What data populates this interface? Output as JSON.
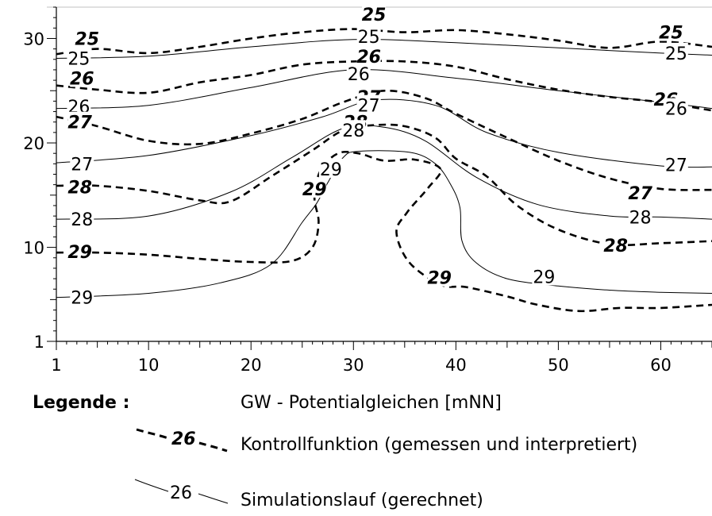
{
  "chart_data": {
    "type": "line",
    "title": "",
    "xlabel": "",
    "ylabel": "",
    "xlim": [
      1,
      65
    ],
    "ylim": [
      1,
      33
    ],
    "x_ticks": [
      1,
      10,
      20,
      30,
      40,
      50,
      60
    ],
    "y_ticks": [
      1,
      10,
      20,
      30
    ],
    "legend_placement": "bottom",
    "legend": {
      "heading": "Legende :",
      "title": "GW - Potentialgleichen [mNN]",
      "entries": [
        {
          "sample_label": "26",
          "text": "Kontrollfunktion (gemessen und interpretiert)"
        },
        {
          "sample_label": "26",
          "text": "Simulationslauf (gerechnet)"
        }
      ]
    },
    "series": [
      {
        "level": "25",
        "style": "dashed",
        "points": [
          [
            1,
            28.5
          ],
          [
            5,
            29
          ],
          [
            10,
            28.6
          ],
          [
            15,
            29.2
          ],
          [
            20,
            30
          ],
          [
            25,
            30.6
          ],
          [
            30,
            30.9
          ],
          [
            35,
            30.6
          ],
          [
            40,
            30.8
          ],
          [
            45,
            30.4
          ],
          [
            50,
            29.8
          ],
          [
            55,
            29.1
          ],
          [
            60,
            29.7
          ],
          [
            65,
            29.2
          ]
        ],
        "labels": [
          {
            "text": "25",
            "x": 4,
            "y": 30
          },
          {
            "text": "25",
            "x": 32,
            "y": 32.3
          },
          {
            "text": "25",
            "x": 61,
            "y": 30.6
          }
        ]
      },
      {
        "level": "25",
        "style": "solid",
        "points": [
          [
            1,
            28.1
          ],
          [
            10,
            28.3
          ],
          [
            20,
            29.2
          ],
          [
            30,
            29.9
          ],
          [
            40,
            29.6
          ],
          [
            50,
            29.1
          ],
          [
            60,
            28.6
          ],
          [
            65,
            28.4
          ]
        ],
        "labels": [
          {
            "text": "25",
            "x": 3.2,
            "y": 28.1
          },
          {
            "text": "25",
            "x": 31.5,
            "y": 30.2
          },
          {
            "text": "25",
            "x": 61.5,
            "y": 28.6
          }
        ]
      },
      {
        "level": "26",
        "style": "dashed",
        "points": [
          [
            1,
            25.5
          ],
          [
            5,
            25.1
          ],
          [
            10,
            24.8
          ],
          [
            15,
            25.8
          ],
          [
            20,
            26.5
          ],
          [
            25,
            27.5
          ],
          [
            30,
            27.8
          ],
          [
            35,
            27.8
          ],
          [
            40,
            27.3
          ],
          [
            45,
            26.1
          ],
          [
            50,
            25.1
          ],
          [
            55,
            24.4
          ],
          [
            60,
            23.9
          ],
          [
            65,
            23.1
          ]
        ],
        "labels": [
          {
            "text": "26",
            "x": 3.5,
            "y": 26.2
          },
          {
            "text": "26",
            "x": 31.5,
            "y": 28.3
          },
          {
            "text": "26",
            "x": 60.5,
            "y": 24.2
          }
        ]
      },
      {
        "level": "26",
        "style": "solid",
        "points": [
          [
            1,
            23.3
          ],
          [
            10,
            23.6
          ],
          [
            20,
            25.3
          ],
          [
            30,
            27
          ],
          [
            40,
            26.2
          ],
          [
            50,
            25
          ],
          [
            60,
            23.9
          ],
          [
            65,
            23.3
          ]
        ],
        "labels": [
          {
            "text": "26",
            "x": 3.2,
            "y": 23.5
          },
          {
            "text": "26",
            "x": 30.5,
            "y": 26.6
          },
          {
            "text": "26",
            "x": 61.5,
            "y": 23.3
          }
        ]
      },
      {
        "level": "27",
        "style": "dashed",
        "points": [
          [
            1,
            22.5
          ],
          [
            5,
            21.6
          ],
          [
            10,
            20.2
          ],
          [
            15,
            19.9
          ],
          [
            20,
            20.9
          ],
          [
            25,
            22.3
          ],
          [
            29,
            23.9
          ],
          [
            33,
            25
          ],
          [
            37,
            24.3
          ],
          [
            40,
            22.8
          ],
          [
            45,
            20.5
          ],
          [
            50,
            18.3
          ],
          [
            55,
            16.6
          ],
          [
            60,
            15.6
          ],
          [
            65,
            15.5
          ]
        ],
        "labels": [
          {
            "text": "27",
            "x": 3.3,
            "y": 22
          },
          {
            "text": "27",
            "x": 31.5,
            "y": 24.4
          },
          {
            "text": "27",
            "x": 58,
            "y": 15.2
          }
        ]
      },
      {
        "level": "27",
        "style": "solid",
        "points": [
          [
            1,
            18.1
          ],
          [
            10,
            18.8
          ],
          [
            20,
            20.7
          ],
          [
            27,
            22.5
          ],
          [
            32,
            24.1
          ],
          [
            38,
            23.6
          ],
          [
            43,
            21
          ],
          [
            50,
            19.1
          ],
          [
            60,
            17.8
          ],
          [
            65,
            17.7
          ]
        ],
        "labels": [
          {
            "text": "27",
            "x": 3.5,
            "y": 18
          },
          {
            "text": "27",
            "x": 31.5,
            "y": 23.6
          },
          {
            "text": "27",
            "x": 61.5,
            "y": 17.9
          }
        ]
      },
      {
        "level": "28",
        "style": "dashed",
        "points": [
          [
            1,
            15.9
          ],
          [
            5,
            15.9
          ],
          [
            10,
            15.4
          ],
          [
            15,
            14.5
          ],
          [
            18,
            14.4
          ],
          [
            22,
            16.8
          ],
          [
            26,
            19.3
          ],
          [
            29,
            21.2
          ],
          [
            32,
            21.7
          ],
          [
            35,
            21.6
          ],
          [
            38,
            20.5
          ],
          [
            40,
            18.5
          ],
          [
            43,
            16.8
          ],
          [
            46,
            14
          ],
          [
            50,
            11.7
          ],
          [
            55,
            10.3
          ],
          [
            60,
            10.4
          ],
          [
            65,
            10.6
          ]
        ],
        "labels": [
          {
            "text": "28",
            "x": 3.3,
            "y": 15.8
          },
          {
            "text": "28",
            "x": 30.2,
            "y": 22
          },
          {
            "text": "28",
            "x": 55.6,
            "y": 10.2
          }
        ]
      },
      {
        "level": "28",
        "style": "solid",
        "points": [
          [
            1,
            12.7
          ],
          [
            10,
            13
          ],
          [
            18,
            15.3
          ],
          [
            24,
            18.6
          ],
          [
            29,
            21.4
          ],
          [
            33,
            21.5
          ],
          [
            37,
            20.2
          ],
          [
            42,
            16.7
          ],
          [
            48,
            14.1
          ],
          [
            55,
            13
          ],
          [
            60,
            12.9
          ],
          [
            65,
            12.7
          ]
        ],
        "labels": [
          {
            "text": "28",
            "x": 3.5,
            "y": 12.7
          },
          {
            "text": "28",
            "x": 30,
            "y": 21.2
          },
          {
            "text": "28",
            "x": 58,
            "y": 12.9
          }
        ]
      },
      {
        "level": "29",
        "style": "dashed",
        "points": [
          [
            1,
            9.5
          ],
          [
            5,
            9.5
          ],
          [
            10,
            9.3
          ],
          [
            15,
            8.9
          ],
          [
            20,
            8.6
          ],
          [
            24,
            8.7
          ],
          [
            26,
            10
          ],
          [
            26.6,
            12.4
          ],
          [
            26.2,
            14.8
          ],
          [
            26.8,
            17.4
          ],
          [
            28.5,
            19
          ],
          [
            30.5,
            19
          ],
          [
            33,
            18.3
          ],
          [
            36,
            18.4
          ],
          [
            38.5,
            17.5
          ],
          [
            37.3,
            15.7
          ],
          [
            35.2,
            13.3
          ],
          [
            34.2,
            11.4
          ],
          [
            35.5,
            8.5
          ],
          [
            38.6,
            6.4
          ],
          [
            41,
            6.2
          ],
          [
            45,
            5.3
          ],
          [
            48,
            4.5
          ],
          [
            52,
            3.9
          ],
          [
            56,
            4.2
          ],
          [
            60,
            4.2
          ],
          [
            65,
            4.5
          ]
        ],
        "labels": [
          {
            "text": "29",
            "x": 3.3,
            "y": 9.6
          },
          {
            "text": "29",
            "x": 26.2,
            "y": 15.6
          },
          {
            "text": "29",
            "x": 38.4,
            "y": 7.1
          }
        ]
      },
      {
        "level": "29",
        "style": "solid",
        "points": [
          [
            1,
            5.2
          ],
          [
            10,
            5.6
          ],
          [
            17,
            6.6
          ],
          [
            22,
            8.4
          ],
          [
            25,
            12.4
          ],
          [
            26.4,
            14.2
          ],
          [
            27.5,
            16.2
          ],
          [
            29,
            18.6
          ],
          [
            30.5,
            19.2
          ],
          [
            35.5,
            19.1
          ],
          [
            38,
            18
          ],
          [
            39.5,
            16
          ],
          [
            40.4,
            13.8
          ],
          [
            40.6,
            10.6
          ],
          [
            42,
            8.5
          ],
          [
            45,
            7
          ],
          [
            50,
            6.3
          ],
          [
            55,
            5.9
          ],
          [
            60,
            5.7
          ],
          [
            65,
            5.6
          ]
        ],
        "labels": [
          {
            "text": "29",
            "x": 3.5,
            "y": 5.2
          },
          {
            "text": "29",
            "x": 27.8,
            "y": 17.5
          },
          {
            "text": "29",
            "x": 48.6,
            "y": 7.2
          }
        ]
      }
    ]
  }
}
